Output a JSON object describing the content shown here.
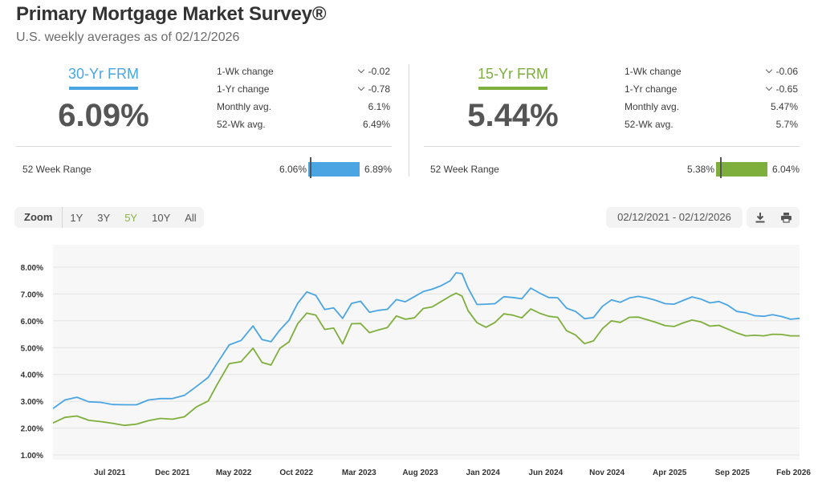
{
  "header": {
    "title": "Primary Mortgage Market Survey®",
    "subtitle": "U.S. weekly averages as of 02/12/2026"
  },
  "colors": {
    "frm30": "#4aa5e2",
    "frm15": "#7eae3c",
    "accent_active": "#8ab34a"
  },
  "panels": [
    {
      "name": "30-Yr FRM",
      "rate": "6.09%",
      "stats": [
        {
          "label": "1-Wk change",
          "value": "-0.02",
          "icon": "chevron-down-icon"
        },
        {
          "label": "1-Yr change",
          "value": "-0.78",
          "icon": "chevron-down-icon"
        },
        {
          "label": "Monthly avg.",
          "value": "6.1%"
        },
        {
          "label": "52-Wk avg.",
          "value": "6.49%"
        }
      ],
      "range": {
        "label": "52 Week Range",
        "low": "6.06%",
        "high": "6.89%",
        "current_fraction": 0.04
      }
    },
    {
      "name": "15-Yr FRM",
      "rate": "5.44%",
      "stats": [
        {
          "label": "1-Wk change",
          "value": "-0.06",
          "icon": "chevron-down-icon"
        },
        {
          "label": "1-Yr change",
          "value": "-0.65",
          "icon": "chevron-down-icon"
        },
        {
          "label": "Monthly avg.",
          "value": "5.47%"
        },
        {
          "label": "52-Wk avg.",
          "value": "5.7%"
        }
      ],
      "range": {
        "label": "52 Week Range",
        "low": "5.38%",
        "high": "6.04%",
        "current_fraction": 0.09
      }
    }
  ],
  "toolbar": {
    "zoom_label": "Zoom",
    "zoom_options": [
      "1Y",
      "3Y",
      "5Y",
      "10Y",
      "All"
    ],
    "active_zoom": "5Y",
    "date_range": "02/12/2021 - 02/12/2026",
    "download_icon": "download-icon",
    "print_icon": "print-icon"
  },
  "chart_data": {
    "type": "line",
    "ylim": [
      1,
      8
    ],
    "yticks": [
      1,
      2,
      3,
      4,
      5,
      6,
      7,
      8
    ],
    "ytick_labels": [
      "1.00%",
      "2.00%",
      "3.00%",
      "4.00%",
      "5.00%",
      "6.00%",
      "7.00%",
      "8.00%"
    ],
    "x_range": [
      2021.12,
      2026.12
    ],
    "xticks": [
      {
        "x": 2021.5,
        "label": "Jul 2021"
      },
      {
        "x": 2021.92,
        "label": "Dec 2021"
      },
      {
        "x": 2022.33,
        "label": "May 2022"
      },
      {
        "x": 2022.75,
        "label": "Oct 2022"
      },
      {
        "x": 2023.17,
        "label": "Mar 2023"
      },
      {
        "x": 2023.58,
        "label": "Aug 2023"
      },
      {
        "x": 2024.0,
        "label": "Jan 2024"
      },
      {
        "x": 2024.42,
        "label": "Jun 2024"
      },
      {
        "x": 2024.83,
        "label": "Nov 2024"
      },
      {
        "x": 2025.25,
        "label": "Apr 2025"
      },
      {
        "x": 2025.67,
        "label": "Sep 2025"
      },
      {
        "x": 2026.08,
        "label": "Feb 2026"
      }
    ],
    "grid": true,
    "series": [
      {
        "name": "30-Yr FRM",
        "color": "#4aa5e2",
        "points": [
          [
            2021.12,
            2.73
          ],
          [
            2021.2,
            3.05
          ],
          [
            2021.28,
            3.15
          ],
          [
            2021.36,
            2.98
          ],
          [
            2021.44,
            2.96
          ],
          [
            2021.52,
            2.88
          ],
          [
            2021.6,
            2.87
          ],
          [
            2021.68,
            2.87
          ],
          [
            2021.76,
            3.05
          ],
          [
            2021.84,
            3.1
          ],
          [
            2021.92,
            3.1
          ],
          [
            2022.0,
            3.22
          ],
          [
            2022.08,
            3.55
          ],
          [
            2022.16,
            3.89
          ],
          [
            2022.22,
            4.42
          ],
          [
            2022.3,
            5.1
          ],
          [
            2022.38,
            5.27
          ],
          [
            2022.46,
            5.81
          ],
          [
            2022.52,
            5.3
          ],
          [
            2022.58,
            5.22
          ],
          [
            2022.64,
            5.66
          ],
          [
            2022.7,
            6.02
          ],
          [
            2022.76,
            6.66
          ],
          [
            2022.82,
            7.08
          ],
          [
            2022.88,
            6.95
          ],
          [
            2022.94,
            6.42
          ],
          [
            2023.0,
            6.48
          ],
          [
            2023.06,
            6.09
          ],
          [
            2023.12,
            6.65
          ],
          [
            2023.18,
            6.73
          ],
          [
            2023.24,
            6.32
          ],
          [
            2023.3,
            6.39
          ],
          [
            2023.36,
            6.43
          ],
          [
            2023.42,
            6.79
          ],
          [
            2023.48,
            6.71
          ],
          [
            2023.54,
            6.9
          ],
          [
            2023.6,
            7.09
          ],
          [
            2023.66,
            7.18
          ],
          [
            2023.72,
            7.31
          ],
          [
            2023.78,
            7.49
          ],
          [
            2023.82,
            7.79
          ],
          [
            2023.86,
            7.76
          ],
          [
            2023.9,
            7.22
          ],
          [
            2023.96,
            6.61
          ],
          [
            2024.02,
            6.62
          ],
          [
            2024.08,
            6.64
          ],
          [
            2024.14,
            6.9
          ],
          [
            2024.2,
            6.87
          ],
          [
            2024.26,
            6.82
          ],
          [
            2024.32,
            7.22
          ],
          [
            2024.38,
            7.03
          ],
          [
            2024.44,
            6.87
          ],
          [
            2024.5,
            6.86
          ],
          [
            2024.56,
            6.47
          ],
          [
            2024.62,
            6.35
          ],
          [
            2024.68,
            6.08
          ],
          [
            2024.74,
            6.12
          ],
          [
            2024.8,
            6.54
          ],
          [
            2024.86,
            6.78
          ],
          [
            2024.92,
            6.69
          ],
          [
            2024.98,
            6.85
          ],
          [
            2025.04,
            6.91
          ],
          [
            2025.1,
            6.85
          ],
          [
            2025.16,
            6.76
          ],
          [
            2025.22,
            6.64
          ],
          [
            2025.28,
            6.62
          ],
          [
            2025.34,
            6.76
          ],
          [
            2025.4,
            6.89
          ],
          [
            2025.46,
            6.81
          ],
          [
            2025.52,
            6.67
          ],
          [
            2025.58,
            6.72
          ],
          [
            2025.64,
            6.58
          ],
          [
            2025.7,
            6.35
          ],
          [
            2025.76,
            6.3
          ],
          [
            2025.82,
            6.19
          ],
          [
            2025.88,
            6.17
          ],
          [
            2025.94,
            6.23
          ],
          [
            2026.0,
            6.16
          ],
          [
            2026.06,
            6.06
          ],
          [
            2026.12,
            6.09
          ]
        ]
      },
      {
        "name": "15-Yr FRM",
        "color": "#7eae3c",
        "points": [
          [
            2021.12,
            2.19
          ],
          [
            2021.2,
            2.4
          ],
          [
            2021.28,
            2.45
          ],
          [
            2021.36,
            2.29
          ],
          [
            2021.44,
            2.24
          ],
          [
            2021.52,
            2.18
          ],
          [
            2021.6,
            2.1
          ],
          [
            2021.68,
            2.15
          ],
          [
            2021.76,
            2.28
          ],
          [
            2021.84,
            2.36
          ],
          [
            2021.92,
            2.33
          ],
          [
            2022.0,
            2.42
          ],
          [
            2022.08,
            2.79
          ],
          [
            2022.16,
            3.01
          ],
          [
            2022.22,
            3.63
          ],
          [
            2022.3,
            4.4
          ],
          [
            2022.38,
            4.48
          ],
          [
            2022.46,
            4.98
          ],
          [
            2022.52,
            4.45
          ],
          [
            2022.58,
            4.35
          ],
          [
            2022.64,
            4.98
          ],
          [
            2022.7,
            5.21
          ],
          [
            2022.76,
            5.9
          ],
          [
            2022.82,
            6.29
          ],
          [
            2022.88,
            6.21
          ],
          [
            2022.94,
            5.68
          ],
          [
            2023.0,
            5.73
          ],
          [
            2023.06,
            5.14
          ],
          [
            2023.12,
            5.89
          ],
          [
            2023.18,
            5.9
          ],
          [
            2023.24,
            5.56
          ],
          [
            2023.3,
            5.66
          ],
          [
            2023.36,
            5.75
          ],
          [
            2023.42,
            6.18
          ],
          [
            2023.48,
            6.06
          ],
          [
            2023.54,
            6.11
          ],
          [
            2023.6,
            6.46
          ],
          [
            2023.66,
            6.52
          ],
          [
            2023.72,
            6.72
          ],
          [
            2023.78,
            6.92
          ],
          [
            2023.82,
            7.03
          ],
          [
            2023.86,
            6.92
          ],
          [
            2023.9,
            6.38
          ],
          [
            2023.96,
            5.93
          ],
          [
            2024.02,
            5.76
          ],
          [
            2024.08,
            5.94
          ],
          [
            2024.14,
            6.26
          ],
          [
            2024.2,
            6.21
          ],
          [
            2024.26,
            6.11
          ],
          [
            2024.32,
            6.44
          ],
          [
            2024.38,
            6.28
          ],
          [
            2024.44,
            6.17
          ],
          [
            2024.5,
            6.13
          ],
          [
            2024.56,
            5.63
          ],
          [
            2024.62,
            5.47
          ],
          [
            2024.68,
            5.15
          ],
          [
            2024.74,
            5.25
          ],
          [
            2024.8,
            5.71
          ],
          [
            2024.86,
            6.0
          ],
          [
            2024.92,
            5.94
          ],
          [
            2024.98,
            6.13
          ],
          [
            2025.04,
            6.14
          ],
          [
            2025.1,
            6.04
          ],
          [
            2025.16,
            5.94
          ],
          [
            2025.22,
            5.82
          ],
          [
            2025.28,
            5.79
          ],
          [
            2025.34,
            5.92
          ],
          [
            2025.4,
            6.03
          ],
          [
            2025.46,
            5.96
          ],
          [
            2025.52,
            5.8
          ],
          [
            2025.58,
            5.83
          ],
          [
            2025.64,
            5.69
          ],
          [
            2025.7,
            5.55
          ],
          [
            2025.76,
            5.44
          ],
          [
            2025.82,
            5.46
          ],
          [
            2025.88,
            5.44
          ],
          [
            2025.94,
            5.5
          ],
          [
            2026.0,
            5.49
          ],
          [
            2026.06,
            5.44
          ],
          [
            2026.12,
            5.44
          ]
        ]
      }
    ]
  }
}
